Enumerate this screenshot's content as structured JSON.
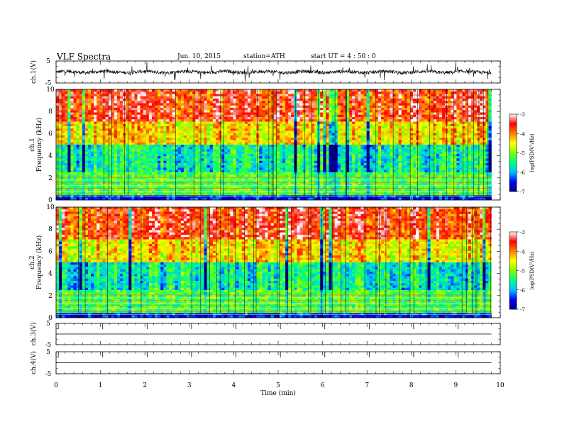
{
  "header": {
    "title": "VLF Spectra",
    "date": "Jun. 10, 2015",
    "station": "station=ATH",
    "start": "start  UT  =  4 : 50 : 0"
  },
  "colors": {
    "spectrogram_scale": [
      "#000080",
      "#0000ff",
      "#00c0ff",
      "#00ff80",
      "#80ff00",
      "#ffff00",
      "#ff8000",
      "#ff0000",
      "#ffffff"
    ],
    "trace": "#000000"
  },
  "chart_data": [
    {
      "type": "line",
      "name": "ch1-waveform",
      "ylabel": "ch.1(V)",
      "ylim": [
        -5,
        5
      ],
      "yticks": [
        "5",
        "-5"
      ],
      "xlim": [
        0,
        10
      ],
      "description_values": {
        "mean": 0,
        "typical_range": [
          -1.5,
          1.5
        ]
      }
    },
    {
      "type": "heatmap",
      "name": "ch1-spectrogram",
      "ylabel_top": "ch.1",
      "ylabel": "Frequency  (kHz)",
      "ylim": [
        0,
        10
      ],
      "yticks": [
        "0",
        "2",
        "4",
        "6",
        "8",
        "10"
      ],
      "xlim": [
        0,
        9.8
      ],
      "colorbar": {
        "label": "log(PSD(V²/Hz)",
        "range": [
          -7,
          -3
        ],
        "ticks": [
          "-3",
          "-4",
          "-5",
          "-6",
          "-7"
        ]
      },
      "bands": [
        {
          "freq": [
            0,
            0.4
          ],
          "log_psd": -6.5
        },
        {
          "freq": [
            0.4,
            2.4
          ],
          "log_psd": -5.2
        },
        {
          "freq": [
            2.4,
            5
          ],
          "log_psd": -5.6
        },
        {
          "freq": [
            5,
            7
          ],
          "log_psd": -4.4
        },
        {
          "freq": [
            7,
            10
          ],
          "log_psd": -3.6
        }
      ]
    },
    {
      "type": "heatmap",
      "name": "ch2-spectrogram",
      "ylabel_top": "ch.2",
      "ylabel": "Frequency  (kHz)",
      "ylim": [
        0,
        10
      ],
      "yticks": [
        "0",
        "2",
        "4",
        "6",
        "8",
        "10"
      ],
      "xlim": [
        0,
        9.8
      ],
      "colorbar": {
        "label": "log(PSD(V²/Hz)",
        "range": [
          -7,
          -3
        ],
        "ticks": [
          "-3",
          "-4",
          "-5",
          "-6",
          "-7"
        ]
      },
      "bands": [
        {
          "freq": [
            0,
            0.4
          ],
          "log_psd": -6.5
        },
        {
          "freq": [
            0.4,
            2.4
          ],
          "log_psd": -5.2
        },
        {
          "freq": [
            2.4,
            5
          ],
          "log_psd": -5.6
        },
        {
          "freq": [
            5,
            7
          ],
          "log_psd": -4.4
        },
        {
          "freq": [
            7,
            10
          ],
          "log_psd": -3.6
        }
      ]
    },
    {
      "type": "line",
      "name": "ch3-waveform",
      "ylabel": "ch.3(V)",
      "ylim": [
        -5,
        5
      ],
      "yticks": [
        "5",
        "-5"
      ],
      "xlim": [
        0,
        9.8
      ],
      "values": [
        0,
        0
      ]
    },
    {
      "type": "line",
      "name": "ch4-waveform",
      "ylabel": "ch.4(V)",
      "ylim": [
        -5,
        5
      ],
      "yticks": [
        "5",
        "-5"
      ],
      "xlim": [
        0,
        9.8
      ],
      "values": [
        0,
        0
      ]
    }
  ],
  "x_axis": {
    "label": "Time  (min)",
    "ticks": [
      "0",
      "1",
      "2",
      "3",
      "4",
      "5",
      "6",
      "7",
      "8",
      "9",
      "10"
    ],
    "range": [
      0,
      10
    ]
  }
}
